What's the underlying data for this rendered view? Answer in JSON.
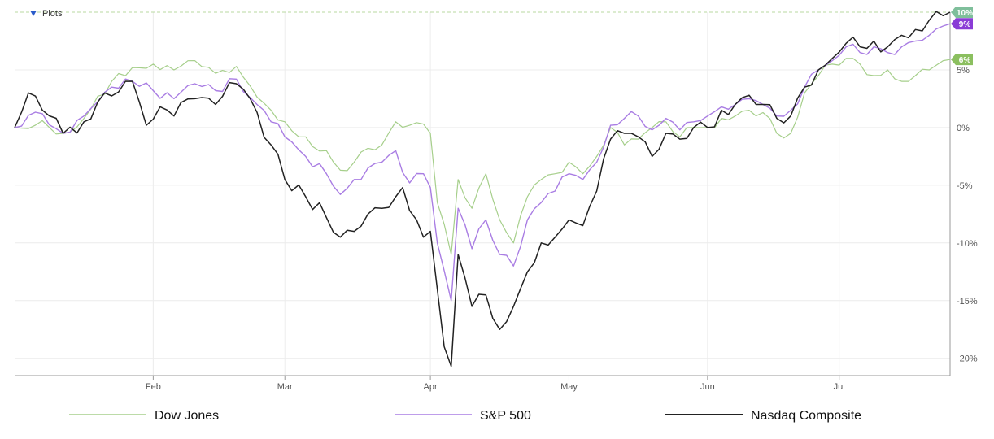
{
  "plots_toggle": {
    "label": "Plots",
    "icon": "triangle-down-icon"
  },
  "chart_data": {
    "type": "line",
    "title": "",
    "xlabel": "",
    "ylabel": "",
    "x_ticks": [
      {
        "label": "Feb",
        "index": 20
      },
      {
        "label": "Mar",
        "index": 39
      },
      {
        "label": "Apr",
        "index": 60
      },
      {
        "label": "May",
        "index": 80
      },
      {
        "label": "Jun",
        "index": 100
      },
      {
        "label": "Jul",
        "index": 119
      }
    ],
    "n_points": 136,
    "ylim": [
      -21.5,
      10
    ],
    "y_ticks": [
      -20,
      -15,
      -10,
      -5,
      0,
      5
    ],
    "y_tick_labels": [
      "-20%",
      "-15%",
      "-10%",
      "-5%",
      "0%",
      "5%"
    ],
    "grid": true,
    "legend_position": "bottom",
    "series": [
      {
        "name": "Dow Jones",
        "color": "#a6cf8b",
        "end_label": "6%",
        "badge_color": "#8bbf5f",
        "anchors": [
          [
            0,
            0
          ],
          [
            4,
            0.6
          ],
          [
            7,
            -0.5
          ],
          [
            10,
            0.8
          ],
          [
            14,
            4
          ],
          [
            17,
            5.2
          ],
          [
            20,
            5.5
          ],
          [
            23,
            5.0
          ],
          [
            26,
            5.8
          ],
          [
            29,
            4.7
          ],
          [
            32,
            5.3
          ],
          [
            34,
            3.6
          ],
          [
            37,
            1.5
          ],
          [
            39,
            0.5
          ],
          [
            42,
            -0.8
          ],
          [
            45,
            -2.0
          ],
          [
            47,
            -3.7
          ],
          [
            49,
            -3.0
          ],
          [
            51,
            -1.8
          ],
          [
            53,
            -1.5
          ],
          [
            55,
            0.5
          ],
          [
            57,
            0.2
          ],
          [
            59,
            0.3
          ],
          [
            60,
            -0.5
          ],
          [
            61,
            -6.5
          ],
          [
            63,
            -11.0
          ],
          [
            64,
            -4.5
          ],
          [
            66,
            -7.0
          ],
          [
            68,
            -4.0
          ],
          [
            70,
            -8.0
          ],
          [
            72,
            -10.0
          ],
          [
            74,
            -6.0
          ],
          [
            76,
            -4.5
          ],
          [
            78,
            -4.0
          ],
          [
            80,
            -3.0
          ],
          [
            82,
            -4.0
          ],
          [
            84,
            -2.5
          ],
          [
            86,
            0
          ],
          [
            88,
            -1.5
          ],
          [
            90,
            -1.0
          ],
          [
            92,
            0
          ],
          [
            94,
            0.5
          ],
          [
            96,
            -0.8
          ],
          [
            98,
            0
          ],
          [
            100,
            0
          ],
          [
            102,
            0.8
          ],
          [
            104,
            1.0
          ],
          [
            106,
            1.5
          ],
          [
            108,
            1.3
          ],
          [
            110,
            -0.5
          ],
          [
            112,
            -0.5
          ],
          [
            114,
            3.0
          ],
          [
            116,
            4.5
          ],
          [
            118,
            5.5
          ],
          [
            120,
            6.0
          ],
          [
            122,
            5.5
          ],
          [
            124,
            4.5
          ],
          [
            126,
            5.0
          ],
          [
            128,
            4.0
          ],
          [
            130,
            4.5
          ],
          [
            132,
            5.0
          ],
          [
            134,
            5.8
          ],
          [
            135,
            5.9
          ]
        ]
      },
      {
        "name": "S&P 500",
        "color": "#a97de3",
        "end_label": "9%",
        "badge_color": "#8a3bd6",
        "anchors": [
          [
            0,
            0
          ],
          [
            4,
            1.2
          ],
          [
            7,
            -0.5
          ],
          [
            10,
            1.0
          ],
          [
            14,
            3.5
          ],
          [
            17,
            4.0
          ],
          [
            20,
            3.2
          ],
          [
            23,
            2.5
          ],
          [
            26,
            3.8
          ],
          [
            29,
            3.2
          ],
          [
            32,
            4.2
          ],
          [
            34,
            2.6
          ],
          [
            37,
            0.5
          ],
          [
            39,
            -0.8
          ],
          [
            42,
            -2.5
          ],
          [
            45,
            -4.0
          ],
          [
            47,
            -5.8
          ],
          [
            49,
            -4.5
          ],
          [
            51,
            -3.5
          ],
          [
            53,
            -3.0
          ],
          [
            55,
            -2.0
          ],
          [
            57,
            -4.8
          ],
          [
            59,
            -4.0
          ],
          [
            60,
            -5.2
          ],
          [
            61,
            -10.0
          ],
          [
            63,
            -15.0
          ],
          [
            64,
            -7.0
          ],
          [
            66,
            -10.5
          ],
          [
            68,
            -8.0
          ],
          [
            70,
            -11.0
          ],
          [
            72,
            -12.0
          ],
          [
            74,
            -8.0
          ],
          [
            76,
            -6.5
          ],
          [
            78,
            -5.5
          ],
          [
            80,
            -4.0
          ],
          [
            82,
            -4.5
          ],
          [
            84,
            -3.0
          ],
          [
            86,
            0.2
          ],
          [
            88,
            0.8
          ],
          [
            90,
            1.0
          ],
          [
            92,
            -0.2
          ],
          [
            94,
            0.8
          ],
          [
            96,
            -0.2
          ],
          [
            98,
            0.5
          ],
          [
            100,
            1.0
          ],
          [
            102,
            1.8
          ],
          [
            104,
            2.0
          ],
          [
            106,
            2.5
          ],
          [
            108,
            2.0
          ],
          [
            110,
            1.0
          ],
          [
            112,
            1.5
          ],
          [
            114,
            3.5
          ],
          [
            116,
            5.0
          ],
          [
            118,
            5.8
          ],
          [
            120,
            7.0
          ],
          [
            122,
            6.5
          ],
          [
            124,
            7.0
          ],
          [
            126,
            6.5
          ],
          [
            128,
            7.0
          ],
          [
            130,
            7.5
          ],
          [
            132,
            8.0
          ],
          [
            134,
            8.8
          ],
          [
            135,
            9.0
          ]
        ]
      },
      {
        "name": "Nasdaq Composite",
        "color": "#222222",
        "end_label": "10%",
        "badge_color": "#7fbf9b",
        "anchors": [
          [
            0,
            0
          ],
          [
            2,
            3.0
          ],
          [
            4,
            1.5
          ],
          [
            7,
            -0.5
          ],
          [
            10,
            0.5
          ],
          [
            13,
            3.0
          ],
          [
            17,
            4.0
          ],
          [
            19,
            0.2
          ],
          [
            21,
            1.8
          ],
          [
            23,
            1.0
          ],
          [
            26,
            2.5
          ],
          [
            29,
            2.0
          ],
          [
            32,
            3.8
          ],
          [
            34,
            2.5
          ],
          [
            37,
            -1.5
          ],
          [
            39,
            -4.5
          ],
          [
            42,
            -6.0
          ],
          [
            45,
            -7.8
          ],
          [
            47,
            -9.5
          ],
          [
            49,
            -9.0
          ],
          [
            51,
            -7.5
          ],
          [
            53,
            -7.0
          ],
          [
            55,
            -6.0
          ],
          [
            56,
            -5.2
          ],
          [
            58,
            -8.0
          ],
          [
            59,
            -9.5
          ],
          [
            60,
            -9.0
          ],
          [
            61,
            -14.0
          ],
          [
            62,
            -19.0
          ],
          [
            63,
            -20.7
          ],
          [
            64,
            -11.0
          ],
          [
            66,
            -15.5
          ],
          [
            68,
            -14.5
          ],
          [
            70,
            -17.5
          ],
          [
            72,
            -15.5
          ],
          [
            74,
            -12.5
          ],
          [
            76,
            -10.0
          ],
          [
            78,
            -9.5
          ],
          [
            80,
            -8.0
          ],
          [
            82,
            -8.5
          ],
          [
            84,
            -5.5
          ],
          [
            86,
            -1.0
          ],
          [
            88,
            -0.5
          ],
          [
            90,
            -0.8
          ],
          [
            92,
            -2.5
          ],
          [
            94,
            -0.5
          ],
          [
            96,
            -1.0
          ],
          [
            98,
            0
          ],
          [
            100,
            0
          ],
          [
            102,
            1.5
          ],
          [
            104,
            2.0
          ],
          [
            106,
            2.8
          ],
          [
            108,
            2.0
          ],
          [
            110,
            0.8
          ],
          [
            112,
            1.0
          ],
          [
            114,
            3.5
          ],
          [
            116,
            5.0
          ],
          [
            118,
            6.0
          ],
          [
            120,
            7.3
          ],
          [
            122,
            7.0
          ],
          [
            124,
            7.5
          ],
          [
            126,
            7.0
          ],
          [
            128,
            8.0
          ],
          [
            130,
            8.5
          ],
          [
            132,
            9.3
          ],
          [
            134,
            9.7
          ],
          [
            135,
            10.0
          ]
        ]
      }
    ]
  }
}
